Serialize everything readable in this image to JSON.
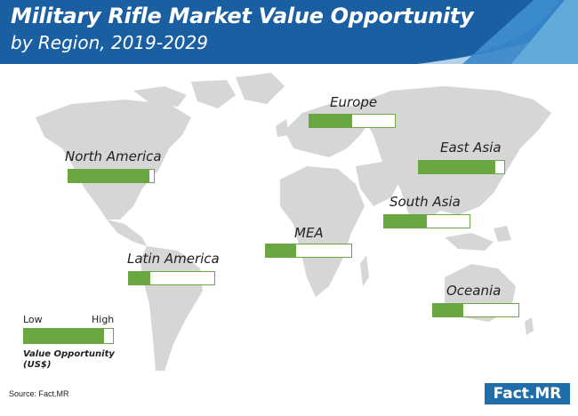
{
  "header": {
    "title": "Military Rifle Market Value Opportunity",
    "subtitle": "by Region, 2019-2029"
  },
  "chart_data": {
    "type": "bar",
    "title": "Military Rifle Market Value Opportunity",
    "subtitle": "by Region, 2019-2029",
    "categories": [
      "Europe",
      "East Asia",
      "North America",
      "South Asia",
      "MEA",
      "Latin America",
      "Oceania"
    ],
    "values": [
      0.5,
      0.9,
      0.95,
      0.5,
      0.35,
      0.25,
      0.35
    ],
    "value_scale": [
      "Low",
      "High"
    ],
    "ylabel": "Value Opportunity (US$)",
    "ylim": [
      0,
      1
    ]
  },
  "legend": {
    "low": "Low",
    "high": "High",
    "caption_line1": "Value Opportunity",
    "caption_line2": "(US$)",
    "example_level": 0.9
  },
  "footer": {
    "source": "Source: Fact.MR",
    "brand": "Fact.MR"
  },
  "colors": {
    "header_blue": "#1b5fa3",
    "accent_light": "#7fc5e8",
    "bar_green": "#6aa641",
    "map_gray": "#d6d6d6"
  }
}
